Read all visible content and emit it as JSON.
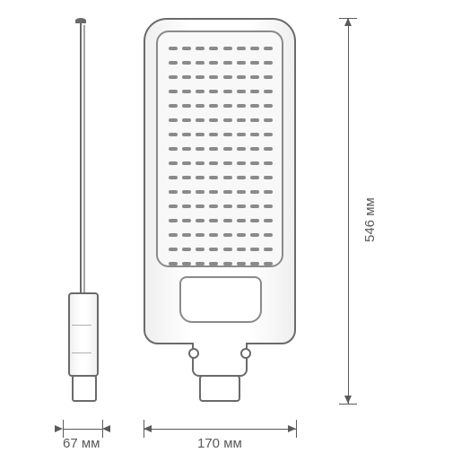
{
  "diagram": {
    "type": "technical-dimension-drawing",
    "outline_color": "#6a6a6a",
    "secondary_line_color": "#a5a5a5",
    "dim_color": "#5a5a5a",
    "background_color": "#ffffff",
    "font_size": 15,
    "led_grid": {
      "cols": 8,
      "rows": 16
    },
    "views": [
      "side",
      "front"
    ],
    "dimensions": {
      "height": {
        "value": 546,
        "unit": "мм",
        "label": "546 мм"
      },
      "width": {
        "value": 170,
        "unit": "мм",
        "label": "170 мм"
      },
      "depth": {
        "value": 67,
        "unit": "мм",
        "label": "67 мм"
      }
    }
  }
}
